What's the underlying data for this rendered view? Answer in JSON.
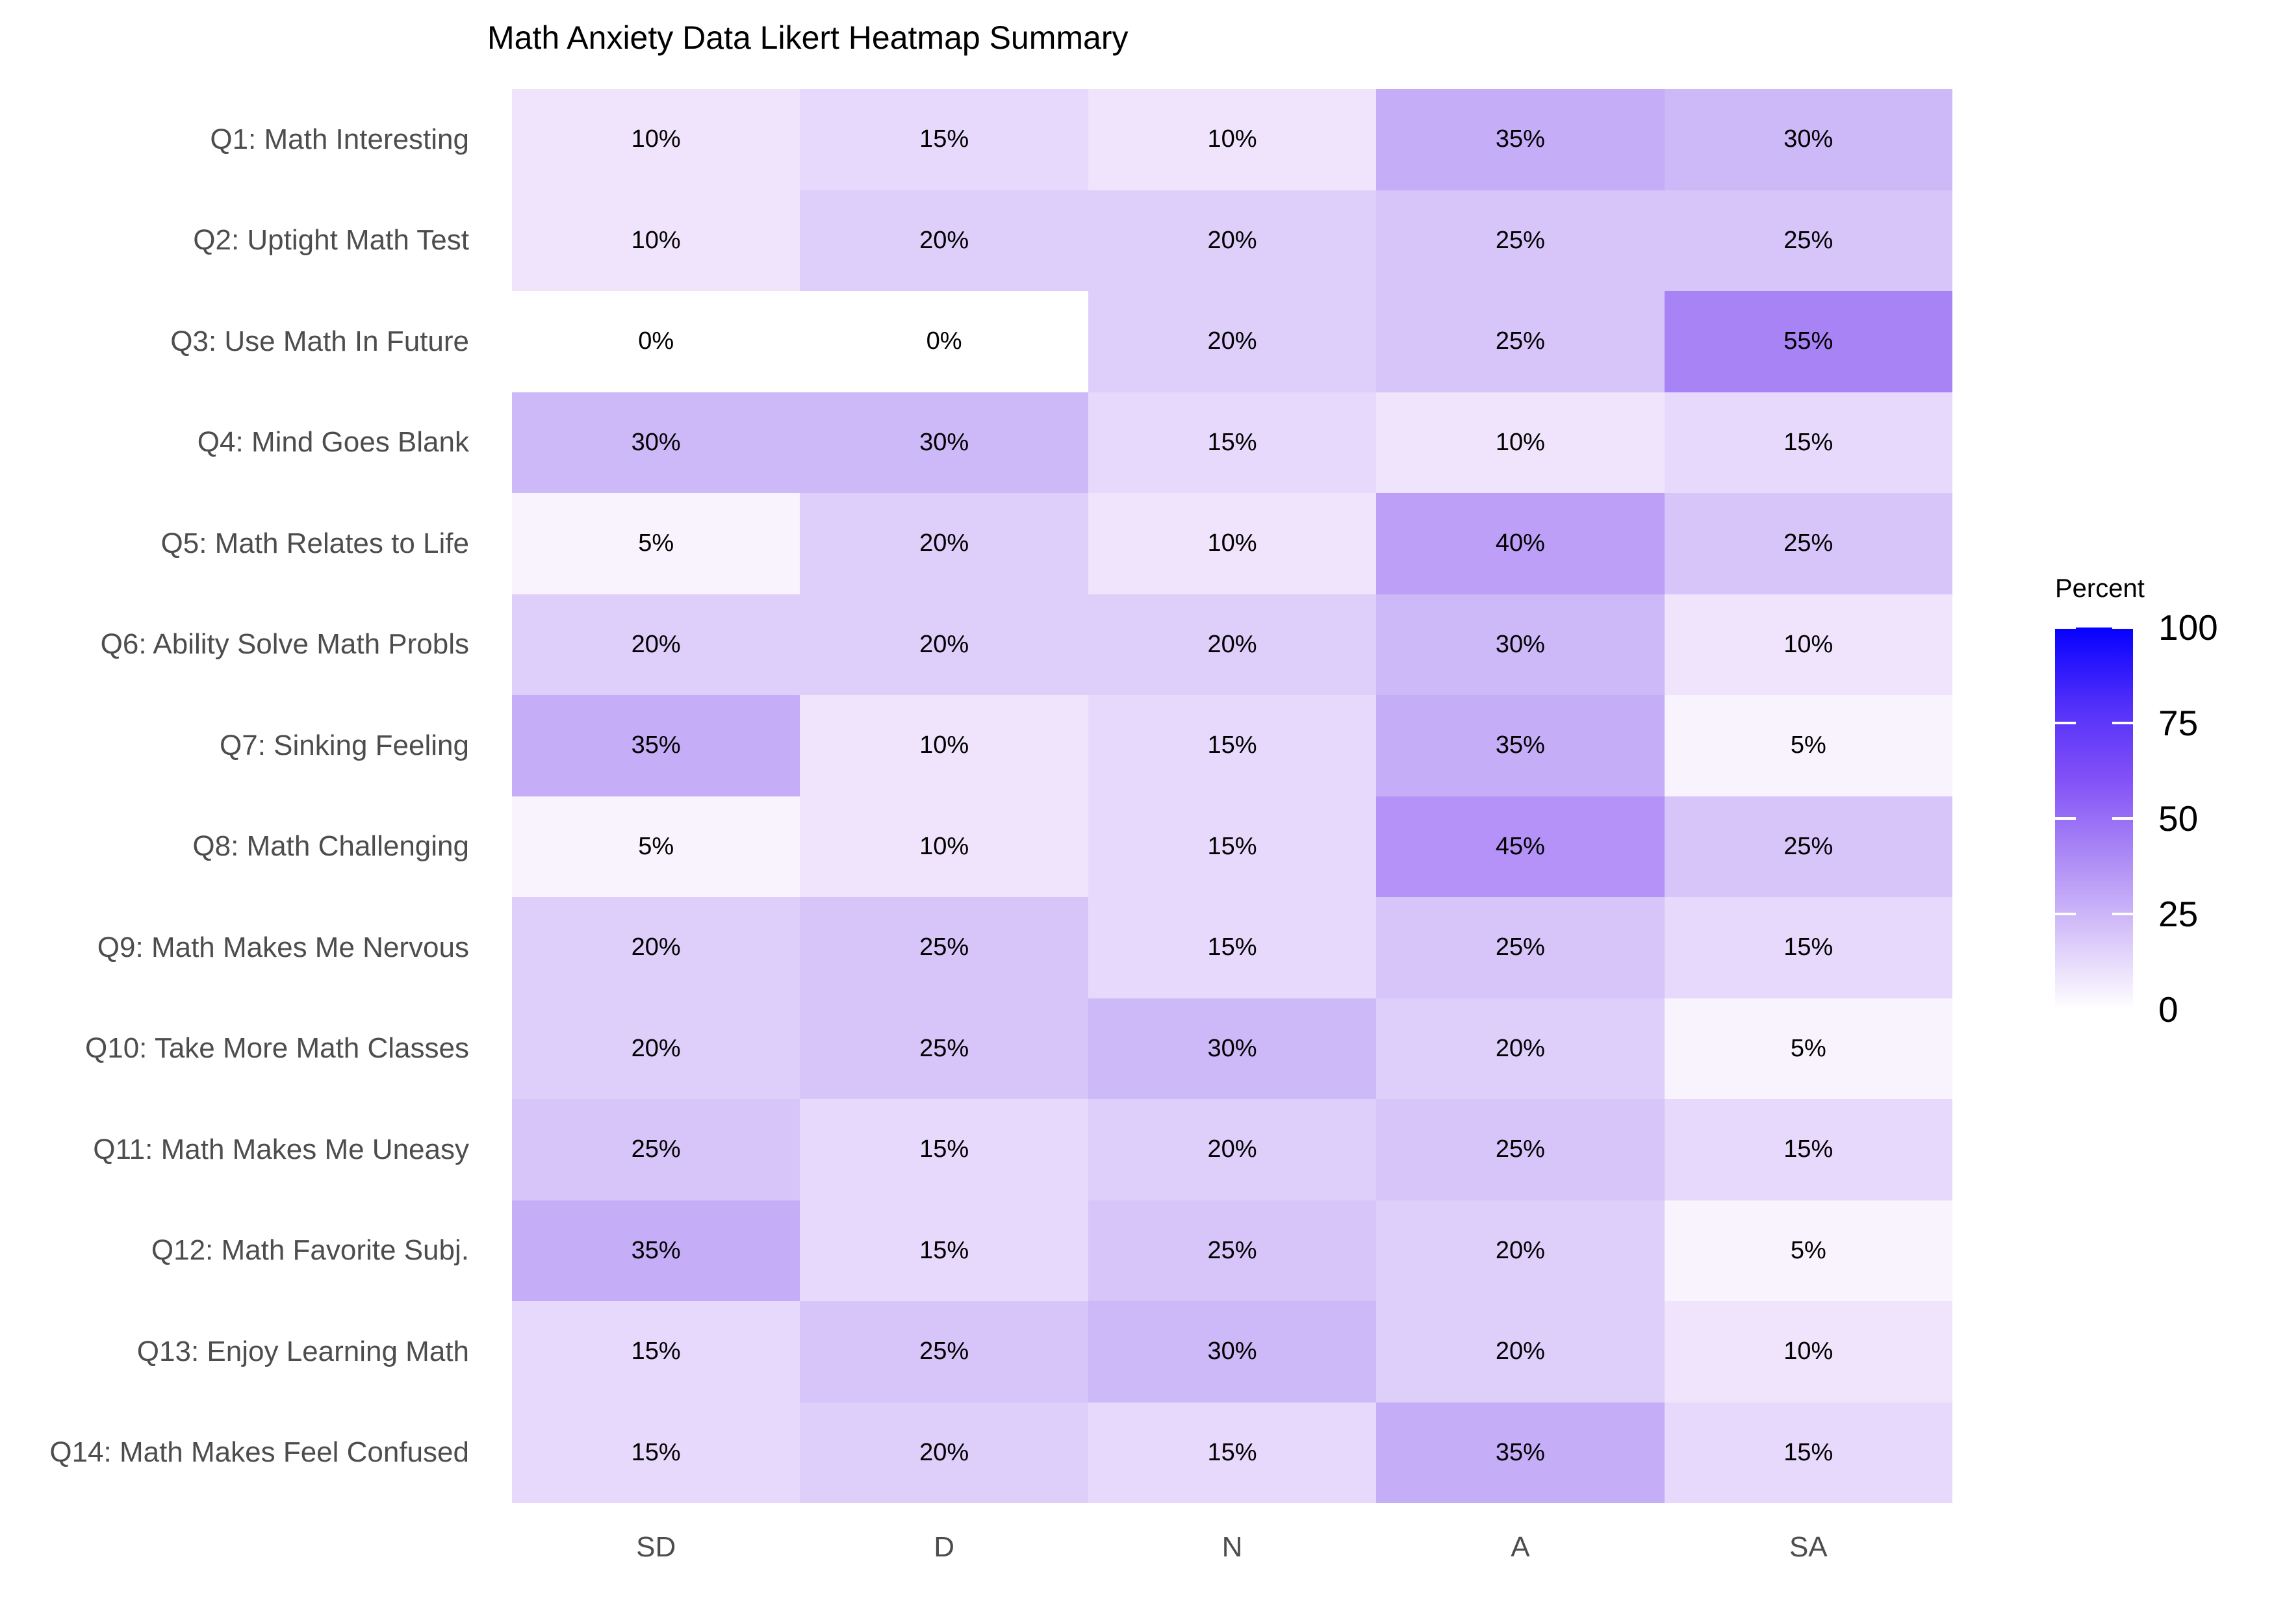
{
  "title": "Math Anxiety Data Likert Heatmap Summary",
  "chart_data": {
    "type": "heatmap",
    "title": "Math Anxiety Data Likert Heatmap Summary",
    "columns": [
      "SD",
      "D",
      "N",
      "A",
      "SA"
    ],
    "rows": [
      {
        "label": "Q1: Math Interesting",
        "values": [
          10,
          15,
          10,
          35,
          30
        ]
      },
      {
        "label": "Q2: Uptight Math Test",
        "values": [
          10,
          20,
          20,
          25,
          25
        ]
      },
      {
        "label": "Q3: Use Math In Future",
        "values": [
          0,
          0,
          20,
          25,
          55
        ]
      },
      {
        "label": "Q4: Mind Goes Blank",
        "values": [
          30,
          30,
          15,
          10,
          15
        ]
      },
      {
        "label": "Q5: Math Relates to Life",
        "values": [
          5,
          20,
          10,
          40,
          25
        ]
      },
      {
        "label": "Q6: Ability Solve Math Probls",
        "values": [
          20,
          20,
          20,
          30,
          10
        ]
      },
      {
        "label": "Q7: Sinking Feeling",
        "values": [
          35,
          10,
          15,
          35,
          5
        ]
      },
      {
        "label": "Q8: Math Challenging",
        "values": [
          5,
          10,
          15,
          45,
          25
        ]
      },
      {
        "label": "Q9: Math Makes Me Nervous",
        "values": [
          20,
          25,
          15,
          25,
          15
        ]
      },
      {
        "label": "Q10: Take More Math Classes",
        "values": [
          20,
          25,
          30,
          20,
          5
        ]
      },
      {
        "label": "Q11: Math Makes Me Uneasy",
        "values": [
          25,
          15,
          20,
          25,
          15
        ]
      },
      {
        "label": "Q12: Math Favorite Subj.",
        "values": [
          35,
          15,
          25,
          20,
          5
        ]
      },
      {
        "label": "Q13: Enjoy Learning Math",
        "values": [
          15,
          25,
          30,
          20,
          10
        ]
      },
      {
        "label": "Q14: Math Makes Feel Confused",
        "values": [
          15,
          20,
          15,
          35,
          15
        ]
      }
    ],
    "value_suffix": "%",
    "legend": {
      "title": "Percent",
      "ticks": [
        100,
        75,
        50,
        25,
        0
      ],
      "range": [
        0,
        100
      ],
      "low_color": "#FFFFFF",
      "high_color": "#0000FF"
    }
  },
  "palette": {
    "0": "#FFFFFF",
    "5": "#F8F3FD",
    "10": "#EFE4FB",
    "15": "#E7D9FB",
    "20": "#DECEFA",
    "25": "#D7C4F9",
    "30": "#CDB8F8",
    "35": "#C5ADF8",
    "40": "#BD9FF7",
    "45": "#B592F7",
    "55": "#A783F5"
  },
  "legend_gradient": [
    "#0500FE",
    "#512EFA",
    "#8352F6",
    "#AC8AF6",
    "#D7C4F9",
    "#FFFFFF"
  ],
  "colors": {
    "axis_text": "#4D4D4D",
    "cell_text": "#000000",
    "title_text": "#000000",
    "background": "#FFFFFF"
  }
}
